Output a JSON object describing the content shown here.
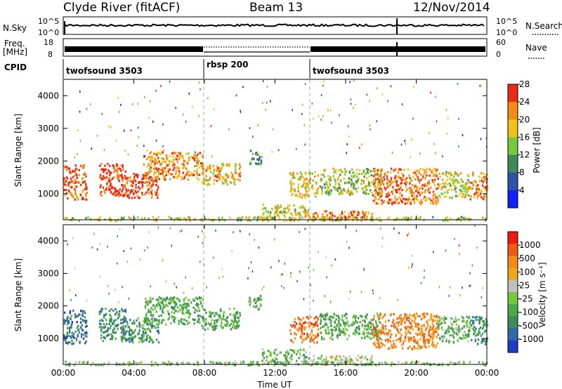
{
  "header": {
    "station": "Clyde River (fitACF)",
    "beam": "Beam 13",
    "date": "12/Nov/2014"
  },
  "status_panels": {
    "nsky_label": "N.Sky",
    "nsky_ticks": [
      "10^5",
      "10^0"
    ],
    "nsearch_label": "N.Search",
    "nsearch_ticks": [
      "10^5",
      "10^0"
    ],
    "freq_label": "Freq.",
    "freq_unit": "[MHz]",
    "freq_ticks": [
      "18",
      "8"
    ],
    "nave_label": "Nave",
    "nave_ticks": [
      "60",
      "0"
    ],
    "cpid_label": "CPID",
    "cpid_segments": [
      {
        "name": "twofsound 3503",
        "start": 0,
        "end": 8
      },
      {
        "name": "rbsp 200",
        "start": 8,
        "end": 14
      },
      {
        "name": "twofsound 3503",
        "start": 14,
        "end": 24
      }
    ]
  },
  "chart_data": [
    {
      "type": "heatmap",
      "name": "power",
      "ylabel": "Slant Range [km]",
      "xlabel": "",
      "xlim": [
        0,
        24
      ],
      "ylim": [
        200,
        4500
      ],
      "yticks": [
        "1000",
        "2000",
        "3000",
        "4000"
      ],
      "colorbar_label": "Power [dB]",
      "colorbar_ticks": [
        "4",
        "8",
        "12",
        "16",
        "20",
        "24",
        "28"
      ],
      "colorbar_colors": [
        "#1020ff",
        "#2f52a8",
        "#3d8a5a",
        "#78c83c",
        "#f2c21a",
        "#f58a16",
        "#ee2a14"
      ],
      "echo_regions": [
        {
          "t0": 0.0,
          "t1": 1.3,
          "r0": 850,
          "r1": 1900,
          "level": 5.5
        },
        {
          "t0": 2.0,
          "t1": 3.5,
          "r0": 950,
          "r1": 1950,
          "level": 6
        },
        {
          "t0": 3.2,
          "t1": 5.4,
          "r0": 900,
          "r1": 1650,
          "level": 6.2
        },
        {
          "t0": 4.5,
          "t1": 7.9,
          "r0": 1450,
          "r1": 2300,
          "level": 4.8
        },
        {
          "t0": 7.8,
          "t1": 10.0,
          "r0": 1300,
          "r1": 1950,
          "level": 4.5
        },
        {
          "t0": 10.5,
          "t1": 11.2,
          "r0": 1900,
          "r1": 2350,
          "level": 2
        },
        {
          "t0": 11.2,
          "t1": 13.9,
          "r0": 250,
          "r1": 700,
          "level": 3.8
        },
        {
          "t0": 12.8,
          "t1": 14.4,
          "r0": 900,
          "r1": 1700,
          "level": 4
        },
        {
          "t0": 14.0,
          "t1": 17.5,
          "r0": 220,
          "r1": 500,
          "level": 5.5
        },
        {
          "t0": 14.5,
          "t1": 18.0,
          "r0": 1000,
          "r1": 1800,
          "level": 3.2
        },
        {
          "t0": 17.5,
          "t1": 21.2,
          "r0": 700,
          "r1": 1800,
          "level": 5.2
        },
        {
          "t0": 21.2,
          "t1": 23.0,
          "r0": 900,
          "r1": 1700,
          "level": 3.8
        },
        {
          "t0": 23.0,
          "t1": 24.0,
          "r0": 850,
          "r1": 1700,
          "level": 5.2
        },
        {
          "t0": 0.0,
          "t1": 24.0,
          "r0": 200,
          "r1": 320,
          "level": 3.5
        }
      ]
    },
    {
      "type": "heatmap",
      "name": "velocity",
      "ylabel": "Slant Range [km]",
      "xlabel": "Time UT",
      "xlim": [
        0,
        24
      ],
      "ylim": [
        200,
        4500
      ],
      "yticks": [
        "1000",
        "2000",
        "3000",
        "4000"
      ],
      "xticks": [
        "00:00",
        "04:00",
        "08:00",
        "12:00",
        "16:00",
        "20:00",
        "00:00"
      ],
      "colorbar_label": "Velocity [m s⁻¹]",
      "colorbar_ticks": [
        "1000",
        "500",
        "100",
        "25",
        "-25",
        "-100",
        "-500",
        "-1000"
      ],
      "colorbar_colors": [
        "#1e3cc8",
        "#2f6aa8",
        "#3d8a5a",
        "#4aaa48",
        "#78c83c",
        "#c0c0c0",
        "#f2a51a",
        "#f58a16",
        "#f05a14",
        "#ee1a10"
      ],
      "echo_regions": [
        {
          "t0": 0.0,
          "t1": 1.3,
          "r0": 850,
          "r1": 1900,
          "level": 1.5
        },
        {
          "t0": 2.0,
          "t1": 3.5,
          "r0": 950,
          "r1": 1950,
          "level": 2
        },
        {
          "t0": 3.2,
          "t1": 5.4,
          "r0": 900,
          "r1": 1650,
          "level": 2.5
        },
        {
          "t0": 4.5,
          "t1": 7.9,
          "r0": 1450,
          "r1": 2300,
          "level": 3
        },
        {
          "t0": 7.8,
          "t1": 10.0,
          "r0": 1300,
          "r1": 1950,
          "level": 3
        },
        {
          "t0": 10.5,
          "t1": 11.2,
          "r0": 1900,
          "r1": 2350,
          "level": 3
        },
        {
          "t0": 11.2,
          "t1": 13.9,
          "r0": 250,
          "r1": 700,
          "level": 3.5
        },
        {
          "t0": 12.8,
          "t1": 14.4,
          "r0": 900,
          "r1": 1700,
          "level": 7.5
        },
        {
          "t0": 14.0,
          "t1": 17.5,
          "r0": 220,
          "r1": 500,
          "level": 4.5
        },
        {
          "t0": 14.5,
          "t1": 18.0,
          "r0": 1000,
          "r1": 1800,
          "level": 3
        },
        {
          "t0": 17.5,
          "t1": 21.2,
          "r0": 700,
          "r1": 1800,
          "level": 7
        },
        {
          "t0": 21.2,
          "t1": 23.0,
          "r0": 900,
          "r1": 1700,
          "level": 3.5
        },
        {
          "t0": 23.0,
          "t1": 24.0,
          "r0": 850,
          "r1": 1700,
          "level": 2
        },
        {
          "t0": 0.0,
          "t1": 24.0,
          "r0": 200,
          "r1": 320,
          "level": 4
        }
      ]
    }
  ]
}
